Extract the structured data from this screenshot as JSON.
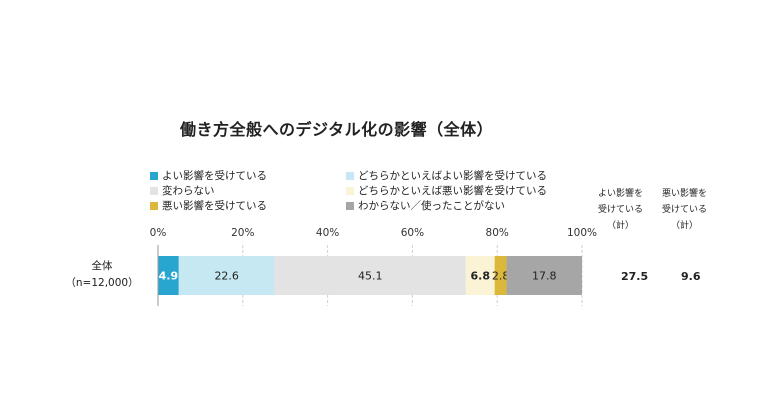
{
  "title": "働き方全般へのデジタル化の影響（全体）",
  "chart_data": {
    "type": "bar",
    "orientation": "horizontal-stacked",
    "xlim": [
      0,
      100
    ],
    "ticks": [
      "0%",
      "20%",
      "40%",
      "60%",
      "80%",
      "100%"
    ],
    "tick_values": [
      0,
      20,
      40,
      60,
      80,
      100
    ],
    "categories": [
      "全体（n=12,000）"
    ],
    "category_lines": [
      "全体",
      "（n=12,000）"
    ],
    "series": [
      {
        "name": "よい影響を受けている",
        "values": [
          4.9
        ],
        "color": "#29a6cf",
        "label_color": "#ffffff",
        "bold": true
      },
      {
        "name": "どちらかといえばよい影響を受けている",
        "values": [
          22.6
        ],
        "color": "#c6e8f3",
        "label_color": "#222222",
        "bold": false
      },
      {
        "name": "変わらない",
        "values": [
          45.1
        ],
        "color": "#e3e3e3",
        "label_color": "#222222",
        "bold": false
      },
      {
        "name": "どちらかといえば悪い影響を受けている",
        "values": [
          6.8
        ],
        "color": "#fbf3d6",
        "label_color": "#222222",
        "bold": true
      },
      {
        "name": "悪い影響を受けている",
        "values": [
          2.8
        ],
        "color": "#dcb83a",
        "label_color": "#222222",
        "bold": false
      },
      {
        "name": "わからない／使ったことがない",
        "values": [
          17.8
        ],
        "color": "#a6a6a6",
        "label_color": "#222222",
        "bold": false
      }
    ],
    "value_labels": [
      "4.9",
      "22.6",
      "45.1",
      "6.8",
      "2.8",
      "17.8"
    ],
    "legend_order": [
      0,
      1,
      2,
      3,
      4,
      5
    ],
    "summary_columns": [
      {
        "header_lines": [
          "よい影響を",
          "受けている",
          "（計）"
        ],
        "value": "27.5"
      },
      {
        "header_lines": [
          "悪い影響を",
          "受けている",
          "（計）"
        ],
        "value": "9.6"
      }
    ]
  }
}
